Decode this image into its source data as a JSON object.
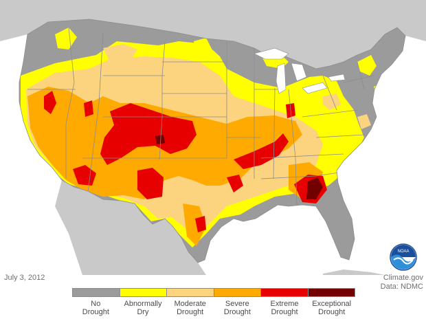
{
  "map": {
    "date": "July 3, 2012",
    "source_line1": "Climate.gov",
    "source_line2": "Data: NDMC",
    "logo_text": "NOAA"
  },
  "colors": {
    "background": "#ffffff",
    "land_outside": "#c9c9c9",
    "water": "#ffffff",
    "state_lines": "#8c8c8c",
    "no_drought": "#9b9b9b",
    "abnormally_dry": "#ffff00",
    "moderate_drought": "#fcd37f",
    "severe_drought": "#ffaa00",
    "extreme_drought": "#e60000",
    "exceptional_drought": "#730000"
  },
  "legend": [
    {
      "line1": "No",
      "line2": "Drought",
      "color": "#9b9b9b"
    },
    {
      "line1": "Abnormally",
      "line2": "Dry",
      "color": "#ffff00"
    },
    {
      "line1": "Moderate",
      "line2": "Drought",
      "color": "#fcd37f"
    },
    {
      "line1": "Severe",
      "line2": "Drought",
      "color": "#ffaa00"
    },
    {
      "line1": "Extreme",
      "line2": "Drought",
      "color": "#e60000"
    },
    {
      "line1": "Exceptional",
      "line2": "Drought",
      "color": "#730000"
    }
  ]
}
